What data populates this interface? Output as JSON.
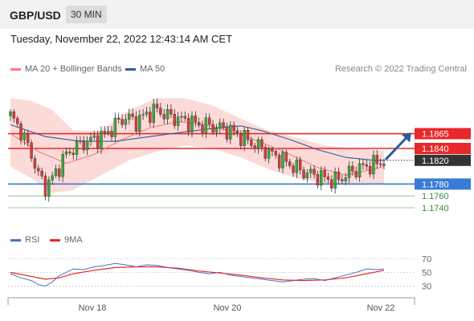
{
  "header": {
    "pair": "GBP/USD",
    "timeframe": "30 MIN",
    "datetime": "Tuesday, November 22, 2022 12:43:14 AM CET"
  },
  "legend": {
    "ma20": "MA 20 + Bollinger Bands",
    "ma50": "MA 50",
    "credit": "Research © 2022 Trading Central",
    "ma20_color": "#f08080",
    "ma50_color": "#2f5e9e"
  },
  "rsi_legend": {
    "rsi": "RSI",
    "ma9": "9MA",
    "rsi_color": "#4a72c4",
    "ma9_color": "#e8282b"
  },
  "chart_data": [
    {
      "type": "candlestick",
      "title": "GBP/USD",
      "ylim": [
        1.1725,
        1.1955
      ],
      "x_ticks": [
        "Nov 18",
        "Nov 20",
        "Nov 22"
      ],
      "resistance_levels": [
        {
          "label": "1.1865",
          "value": 1.1865,
          "color": "#e8282b"
        },
        {
          "label": "1.1840",
          "value": 1.184,
          "color": "#e8282b"
        }
      ],
      "current_price": {
        "label": "1.1820",
        "value": 1.182
      },
      "support_levels": [
        {
          "label": "1.1780",
          "value": 1.178,
          "color": "#3a7bd5"
        },
        {
          "label": "1.1760",
          "value": 1.176,
          "color": "#3a8a3a"
        },
        {
          "label": "1.1740",
          "value": 1.174,
          "color": "#3a8a3a"
        }
      ],
      "close_path": [
        [
          0,
          1.1895
        ],
        [
          3,
          1.187
        ],
        [
          6,
          1.183
        ],
        [
          8,
          1.1795
        ],
        [
          10,
          1.1775
        ],
        [
          12,
          1.179
        ],
        [
          14,
          1.181
        ],
        [
          16,
          1.183
        ],
        [
          18,
          1.184
        ],
        [
          21,
          1.185
        ],
        [
          24,
          1.1855
        ],
        [
          27,
          1.1862
        ],
        [
          30,
          1.188
        ],
        [
          33,
          1.1893
        ],
        [
          36,
          1.1885
        ],
        [
          39,
          1.1898
        ],
        [
          42,
          1.1905
        ],
        [
          45,
          1.1895
        ],
        [
          48,
          1.189
        ],
        [
          51,
          1.1885
        ],
        [
          54,
          1.188
        ],
        [
          57,
          1.1878
        ],
        [
          60,
          1.1875
        ],
        [
          63,
          1.187
        ],
        [
          66,
          1.186
        ],
        [
          69,
          1.185
        ],
        [
          72,
          1.184
        ],
        [
          75,
          1.183
        ],
        [
          78,
          1.182
        ],
        [
          81,
          1.181
        ],
        [
          84,
          1.18
        ],
        [
          87,
          1.1795
        ],
        [
          90,
          1.179
        ],
        [
          93,
          1.1785
        ],
        [
          96,
          1.1795
        ],
        [
          99,
          1.1805
        ],
        [
          102,
          1.181
        ],
        [
          105,
          1.1815
        ],
        [
          107,
          1.182
        ]
      ],
      "ma20": [
        [
          0,
          1.1865
        ],
        [
          8,
          1.1835
        ],
        [
          16,
          1.1815
        ],
        [
          24,
          1.183
        ],
        [
          32,
          1.1855
        ],
        [
          40,
          1.1875
        ],
        [
          48,
          1.1885
        ],
        [
          56,
          1.188
        ],
        [
          64,
          1.1868
        ],
        [
          72,
          1.185
        ],
        [
          80,
          1.183
        ],
        [
          88,
          1.1808
        ],
        [
          96,
          1.1795
        ],
        [
          104,
          1.1805
        ],
        [
          107,
          1.181
        ]
      ],
      "ma50": [
        [
          0,
          1.188
        ],
        [
          10,
          1.186
        ],
        [
          20,
          1.1852
        ],
        [
          30,
          1.1852
        ],
        [
          40,
          1.186
        ],
        [
          50,
          1.1868
        ],
        [
          60,
          1.1875
        ],
        [
          66,
          1.1878
        ],
        [
          72,
          1.187
        ],
        [
          80,
          1.1855
        ],
        [
          88,
          1.1838
        ],
        [
          96,
          1.1825
        ],
        [
          104,
          1.182
        ],
        [
          107,
          1.182
        ]
      ],
      "bollinger_upper": [
        [
          0,
          1.1925
        ],
        [
          6,
          1.192
        ],
        [
          12,
          1.1905
        ],
        [
          18,
          1.187
        ],
        [
          26,
          1.187
        ],
        [
          34,
          1.1905
        ],
        [
          42,
          1.1925
        ],
        [
          50,
          1.1925
        ],
        [
          58,
          1.1912
        ],
        [
          66,
          1.189
        ],
        [
          74,
          1.187
        ],
        [
          82,
          1.1858
        ],
        [
          90,
          1.1845
        ],
        [
          98,
          1.184
        ],
        [
          107,
          1.1836
        ]
      ],
      "bollinger_lower": [
        [
          0,
          1.181
        ],
        [
          6,
          1.179
        ],
        [
          12,
          1.1765
        ],
        [
          18,
          1.177
        ],
        [
          26,
          1.1795
        ],
        [
          34,
          1.182
        ],
        [
          42,
          1.1835
        ],
        [
          50,
          1.1845
        ],
        [
          58,
          1.184
        ],
        [
          66,
          1.1825
        ],
        [
          74,
          1.1805
        ],
        [
          82,
          1.179
        ],
        [
          90,
          1.178
        ],
        [
          98,
          1.1778
        ],
        [
          107,
          1.178
        ]
      ]
    },
    {
      "type": "line",
      "title": "RSI",
      "ylim": [
        20,
        75
      ],
      "y_ticks": [
        70,
        50,
        30
      ],
      "series": [
        {
          "name": "RSI",
          "values": [
            [
              0,
              48
            ],
            [
              3,
              42
            ],
            [
              6,
              38
            ],
            [
              8,
              32
            ],
            [
              10,
              30
            ],
            [
              12,
              36
            ],
            [
              14,
              45
            ],
            [
              16,
              50
            ],
            [
              18,
              55
            ],
            [
              21,
              54
            ],
            [
              24,
              58
            ],
            [
              27,
              60
            ],
            [
              30,
              63
            ],
            [
              33,
              61
            ],
            [
              36,
              58
            ],
            [
              39,
              61
            ],
            [
              42,
              60
            ],
            [
              45,
              57
            ],
            [
              48,
              55
            ],
            [
              51,
              53
            ],
            [
              54,
              50
            ],
            [
              57,
              48
            ],
            [
              60,
              50
            ],
            [
              63,
              46
            ],
            [
              66,
              44
            ],
            [
              69,
              42
            ],
            [
              72,
              40
            ],
            [
              75,
              38
            ],
            [
              78,
              36
            ],
            [
              81,
              38
            ],
            [
              84,
              40
            ],
            [
              87,
              41
            ],
            [
              90,
              38
            ],
            [
              93,
              42
            ],
            [
              96,
              46
            ],
            [
              99,
              50
            ],
            [
              102,
              55
            ],
            [
              105,
              54
            ],
            [
              107,
              55
            ]
          ]
        },
        {
          "name": "9MA",
          "values": [
            [
              0,
              50
            ],
            [
              6,
              44
            ],
            [
              10,
              40
            ],
            [
              14,
              42
            ],
            [
              18,
              48
            ],
            [
              24,
              53
            ],
            [
              30,
              57
            ],
            [
              36,
              58
            ],
            [
              42,
              58
            ],
            [
              48,
              56
            ],
            [
              54,
              52
            ],
            [
              60,
              49
            ],
            [
              66,
              46
            ],
            [
              72,
              42
            ],
            [
              78,
              39
            ],
            [
              84,
              38
            ],
            [
              90,
              39
            ],
            [
              96,
              42
            ],
            [
              102,
              48
            ],
            [
              107,
              53
            ]
          ]
        }
      ]
    }
  ]
}
